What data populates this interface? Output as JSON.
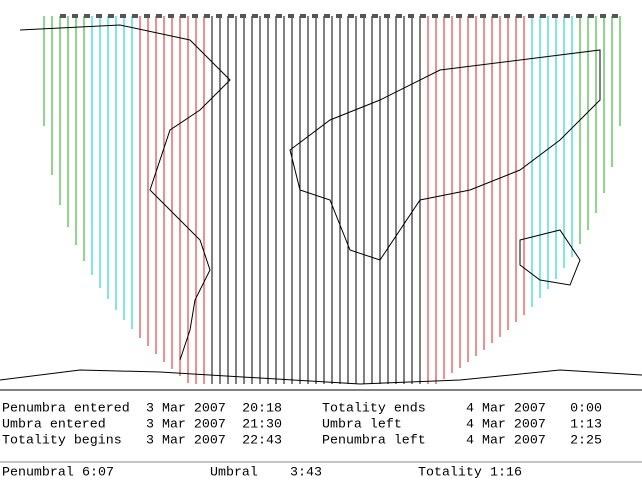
{
  "events": [
    {
      "name": "Penumbra entered",
      "date": "3 Mar 2007",
      "time": "20:18"
    },
    {
      "name": "Umbra entered",
      "date": "3 Mar 2007",
      "time": "21:30"
    },
    {
      "name": "Totality begins",
      "date": "3 Mar 2007",
      "time": "22:43"
    },
    {
      "name": "Totality ends",
      "date": "4 Mar 2007",
      "time": "0:00"
    },
    {
      "name": "Umbra left",
      "date": "4 Mar 2007",
      "time": "1:13"
    },
    {
      "name": "Penumbra left",
      "date": "4 Mar 2007",
      "time": "2:25"
    }
  ],
  "durations": [
    {
      "label": "Penumbral",
      "value": "6:07"
    },
    {
      "label": "Umbral",
      "value": "3:43"
    },
    {
      "label": "Totality",
      "value": "1:16"
    }
  ]
}
